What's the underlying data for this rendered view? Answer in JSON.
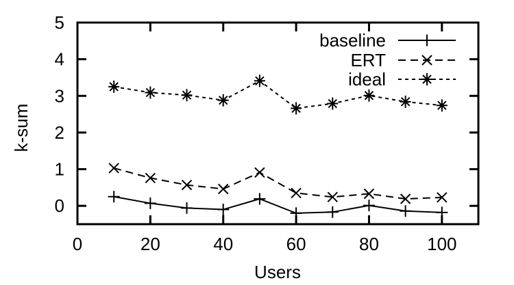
{
  "chart_data": {
    "type": "line",
    "title": "",
    "xlabel": "Users",
    "ylabel": "k-sum",
    "x": [
      10,
      20,
      30,
      40,
      50,
      60,
      70,
      80,
      90,
      100
    ],
    "series": [
      {
        "name": "baseline",
        "marker": "plus",
        "line": "solid",
        "color": "#000000",
        "values": [
          0.25,
          0.07,
          -0.06,
          -0.1,
          0.19,
          -0.2,
          -0.17,
          0.01,
          -0.14,
          -0.18
        ]
      },
      {
        "name": "ERT",
        "marker": "cross",
        "line": "dashed",
        "color": "#000000",
        "values": [
          1.03,
          0.76,
          0.57,
          0.46,
          0.91,
          0.35,
          0.24,
          0.33,
          0.19,
          0.23
        ]
      },
      {
        "name": "ideal",
        "marker": "asterisk",
        "line": "short-dash",
        "color": "#000000",
        "values": [
          3.25,
          3.09,
          3.02,
          2.88,
          3.41,
          2.66,
          2.79,
          3.01,
          2.84,
          2.74
        ]
      }
    ],
    "xlim": [
      0,
      110
    ],
    "ylim": [
      -0.5,
      5
    ],
    "x_ticks": [
      0,
      20,
      40,
      60,
      80,
      100
    ],
    "y_ticks": [
      0,
      1,
      2,
      3,
      4,
      5
    ],
    "grid": false,
    "legend_position": "top-right",
    "axis_color": "#000000",
    "background": "#ffffff"
  }
}
